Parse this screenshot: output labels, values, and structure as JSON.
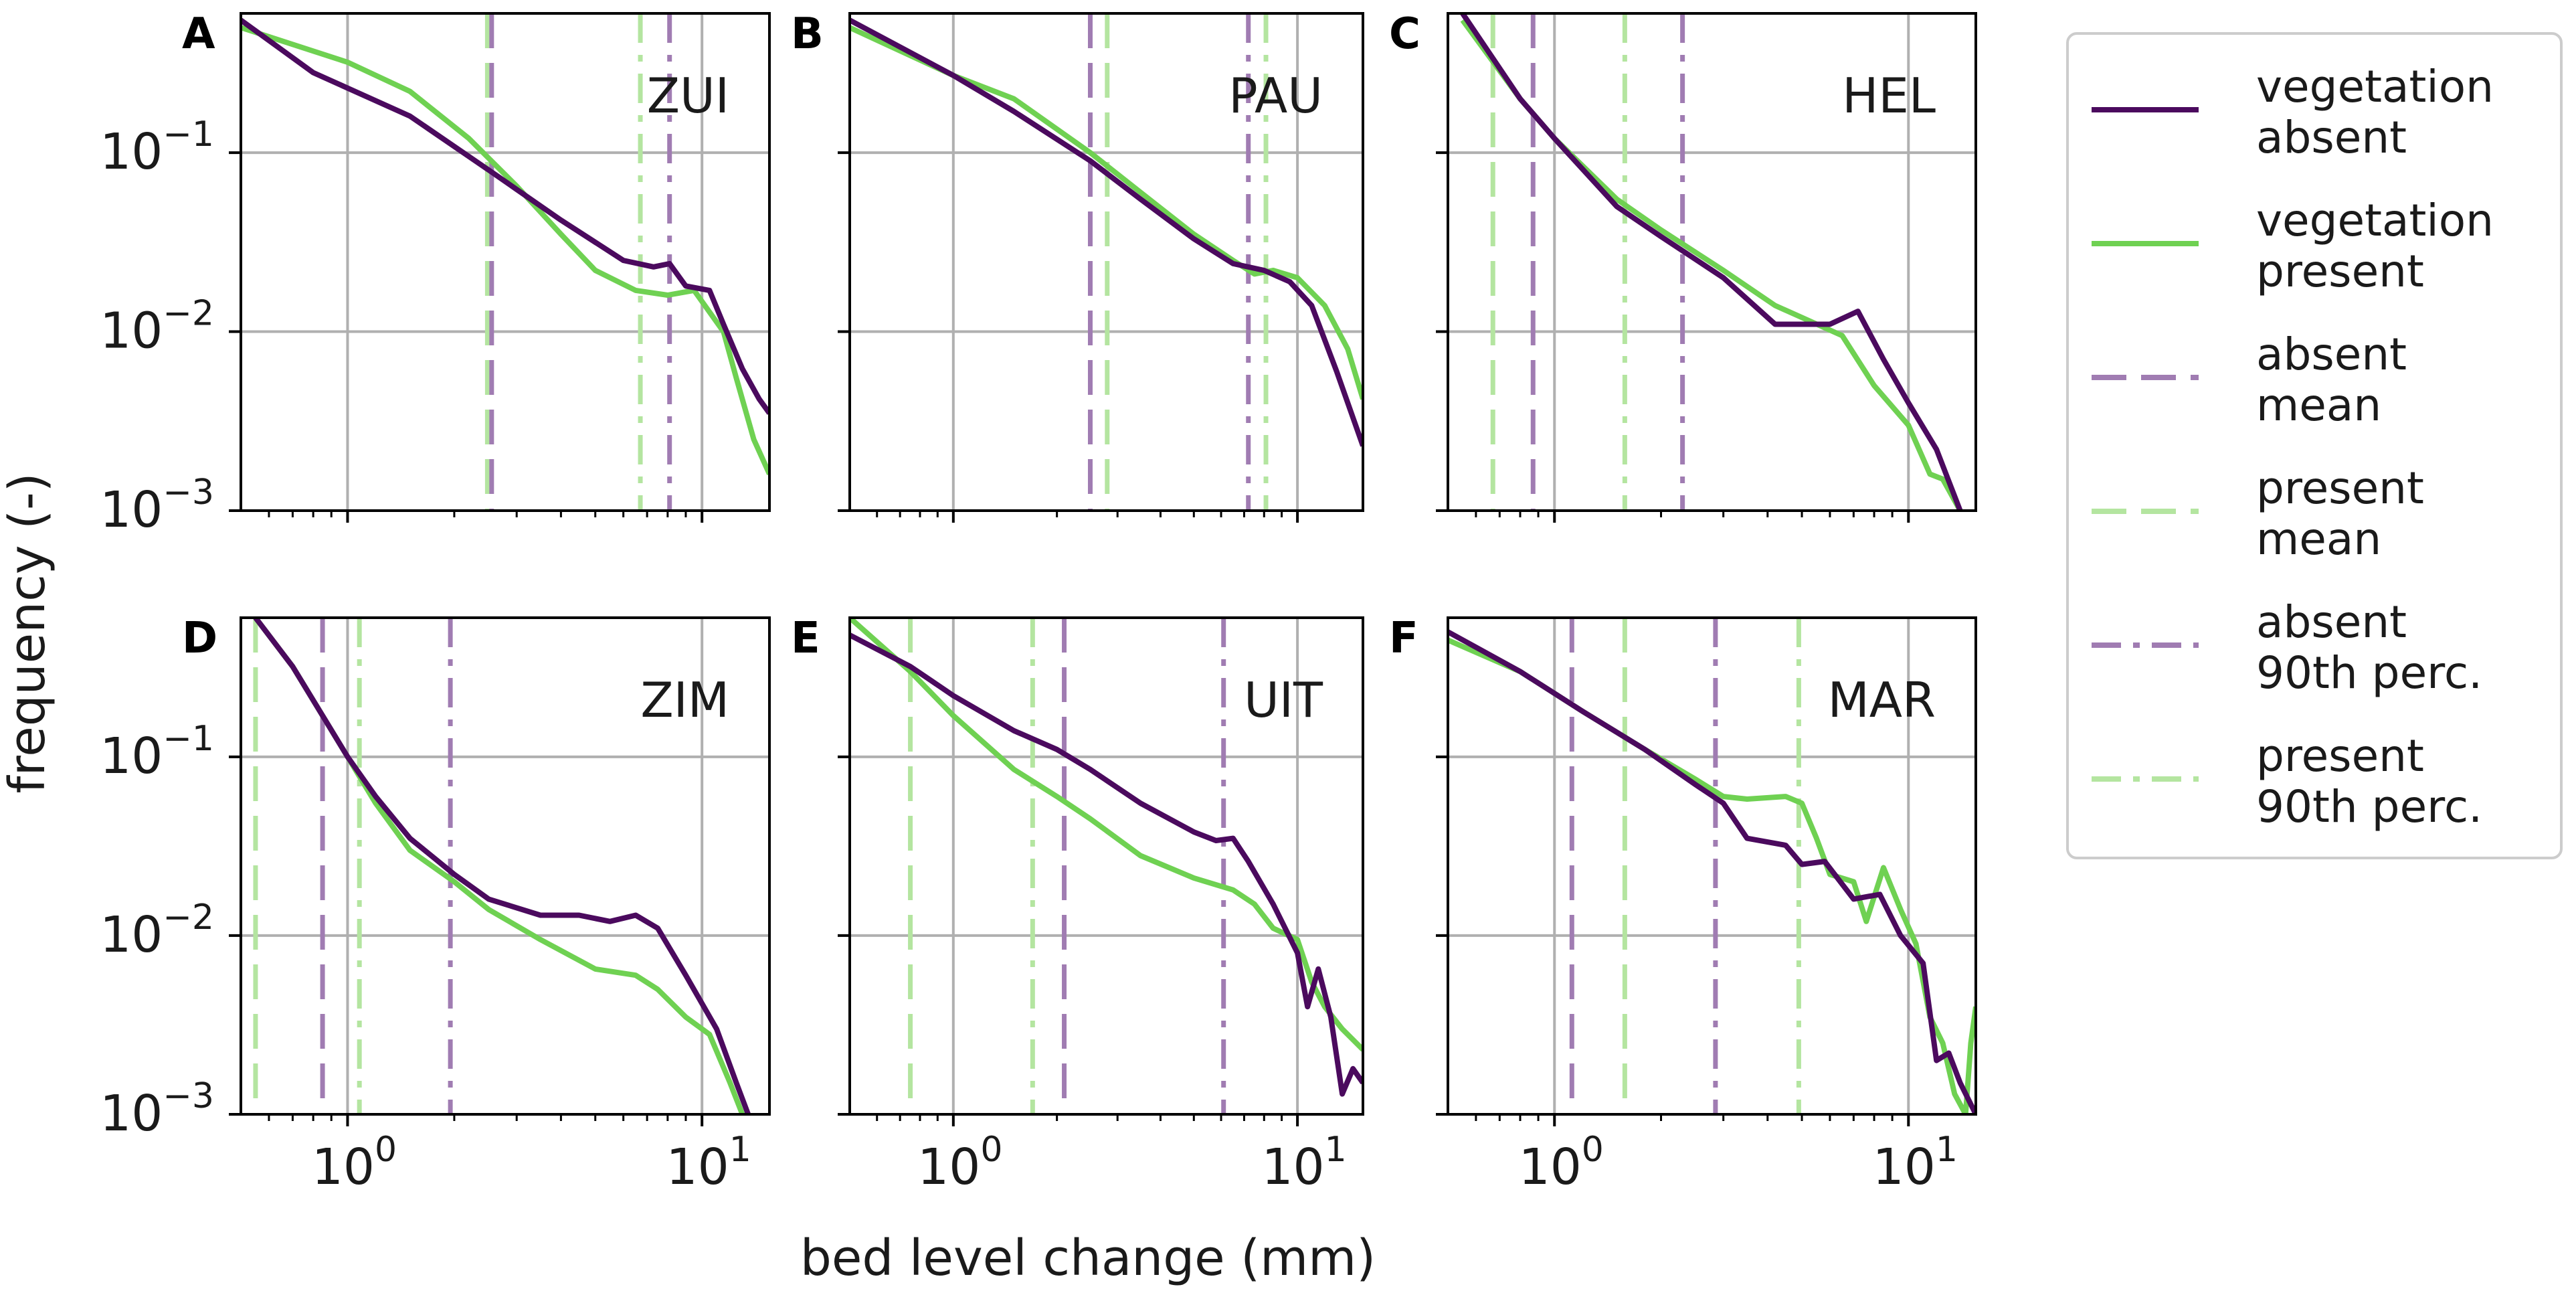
{
  "chart_data": {
    "type": "line",
    "layout": "2x3 small multiples, log-log axes",
    "xlabel": "bed level change (mm)",
    "ylabel": "frequency (-)",
    "xscale": "log",
    "yscale": "log",
    "xlim": [
      0.5,
      15.5
    ],
    "ylim": [
      0.001,
      0.6
    ],
    "xticks": [
      {
        "value": 1,
        "label": "10",
        "exp": "0"
      },
      {
        "value": 10,
        "label": "10",
        "exp": "1"
      }
    ],
    "yticks": [
      {
        "value": 0.1,
        "label": "10",
        "exp": "−1"
      },
      {
        "value": 0.01,
        "label": "10",
        "exp": "−2"
      },
      {
        "value": 0.001,
        "label": "10",
        "exp": "−3"
      }
    ],
    "colors": {
      "absent": "#4b0a5e",
      "present": "#6fd152",
      "absent_stat": "#a07cb2",
      "present_stat": "#b4e5a0",
      "grid": "#b0b0b0",
      "axis": "#000000"
    },
    "legend": [
      {
        "key": "absent_line",
        "style": "solid",
        "color": "#4b0a5e",
        "lines": [
          "vegetation",
          "absent"
        ]
      },
      {
        "key": "present_line",
        "style": "solid",
        "color": "#6fd152",
        "lines": [
          "vegetation",
          "present"
        ]
      },
      {
        "key": "absent_mean",
        "style": "dashed",
        "color": "#a07cb2",
        "lines": [
          "absent",
          "mean"
        ]
      },
      {
        "key": "present_mean",
        "style": "dashed",
        "color": "#b4e5a0",
        "lines": [
          "present",
          "mean"
        ]
      },
      {
        "key": "absent_p90",
        "style": "dashdot",
        "color": "#a07cb2",
        "lines": [
          "absent",
          "90th perc."
        ]
      },
      {
        "key": "present_p90",
        "style": "dashdot",
        "color": "#b4e5a0",
        "lines": [
          "present",
          "90th perc."
        ]
      }
    ],
    "panels": [
      {
        "letter": "A",
        "site": "ZUI",
        "absent_mean": 2.55,
        "present_mean": 2.48,
        "absent_p90": 8.1,
        "present_p90": 6.7,
        "series": [
          {
            "name": "vegetation absent",
            "x": [
              0.5,
              0.8,
              1.5,
              2.5,
              4,
              6,
              7.3,
              8.1,
              9,
              10.5,
              11.5,
              13,
              14.5,
              15.5
            ],
            "y": [
              0.55,
              0.28,
              0.16,
              0.08,
              0.042,
              0.025,
              0.023,
              0.024,
              0.018,
              0.017,
              0.011,
              0.0062,
              0.0042,
              0.0035
            ]
          },
          {
            "name": "vegetation present",
            "x": [
              0.5,
              1,
              1.5,
              2.2,
              3,
              4,
              5,
              6.5,
              8,
              9.5,
              11.5,
              12.5,
              14,
              15.5
            ],
            "y": [
              0.5,
              0.32,
              0.22,
              0.12,
              0.065,
              0.035,
              0.022,
              0.017,
              0.016,
              0.017,
              0.01,
              0.0055,
              0.0025,
              0.0016
            ]
          }
        ]
      },
      {
        "letter": "B",
        "site": "PAU",
        "absent_mean": 2.5,
        "present_mean": 2.8,
        "absent_p90": 7.2,
        "present_p90": 8.1,
        "series": [
          {
            "name": "vegetation absent",
            "x": [
              0.5,
              1,
              1.5,
              2.5,
              3.5,
              5,
              6.5,
              8,
              9.5,
              11,
              13,
              15.5
            ],
            "y": [
              0.55,
              0.27,
              0.17,
              0.09,
              0.055,
              0.033,
              0.024,
              0.022,
              0.019,
              0.014,
              0.006,
              0.0023
            ]
          },
          {
            "name": "vegetation present",
            "x": [
              0.5,
              1,
              1.5,
              2.5,
              3.5,
              5,
              6.5,
              7.5,
              8.5,
              10,
              12,
              14,
              15.5
            ],
            "y": [
              0.5,
              0.27,
              0.2,
              0.1,
              0.06,
              0.035,
              0.025,
              0.021,
              0.022,
              0.02,
              0.014,
              0.008,
              0.0042
            ]
          }
        ]
      },
      {
        "letter": "C",
        "site": "HEL",
        "absent_mean": 0.87,
        "present_mean": 0.67,
        "absent_p90": 2.3,
        "present_p90": 1.58,
        "series": [
          {
            "name": "vegetation absent",
            "x": [
              0.55,
              0.8,
              1,
              1.5,
              2,
              3,
              4.2,
              5,
              6,
              7.2,
              8.5,
              10,
              12,
              14
            ],
            "y": [
              0.6,
              0.2,
              0.12,
              0.05,
              0.034,
              0.02,
              0.011,
              0.011,
              0.011,
              0.013,
              0.007,
              0.004,
              0.0022,
              0.001
            ]
          },
          {
            "name": "vegetation present",
            "x": [
              0.55,
              0.8,
              1,
              1.5,
              2,
              3,
              4.2,
              5,
              6.5,
              8,
              10,
              11.5,
              12.5,
              14
            ],
            "y": [
              0.55,
              0.2,
              0.12,
              0.055,
              0.037,
              0.022,
              0.014,
              0.012,
              0.0095,
              0.005,
              0.003,
              0.0016,
              0.0015,
              0.001
            ]
          }
        ]
      },
      {
        "letter": "D",
        "site": "ZIM",
        "absent_mean": 0.85,
        "present_mean": 0.55,
        "absent_p90": 1.95,
        "present_p90": 1.08,
        "series": [
          {
            "name": "vegetation absent",
            "x": [
              0.55,
              0.7,
              0.85,
              1,
              1.2,
              1.5,
              2,
              2.5,
              3.5,
              4.5,
              5.5,
              6.5,
              7.5,
              9,
              11,
              12.5,
              13.5
            ],
            "y": [
              0.6,
              0.32,
              0.17,
              0.1,
              0.06,
              0.035,
              0.022,
              0.016,
              0.013,
              0.013,
              0.012,
              0.013,
              0.011,
              0.006,
              0.003,
              0.0015,
              0.001
            ]
          },
          {
            "name": "vegetation present",
            "x": [
              0.55,
              0.7,
              0.85,
              1,
              1.2,
              1.5,
              2,
              2.5,
              3.5,
              5,
              6.5,
              7.5,
              9,
              10.5,
              12,
              13
            ],
            "y": [
              0.6,
              0.32,
              0.17,
              0.1,
              0.055,
              0.03,
              0.02,
              0.014,
              0.0095,
              0.0065,
              0.006,
              0.005,
              0.0035,
              0.0028,
              0.0015,
              0.001
            ]
          }
        ]
      },
      {
        "letter": "E",
        "site": "UIT",
        "absent_mean": 2.1,
        "present_mean": 0.75,
        "absent_p90": 6.1,
        "present_p90": 1.7,
        "series": [
          {
            "name": "vegetation absent",
            "x": [
              0.5,
              0.75,
              1,
              1.5,
              2,
              2.5,
              3.5,
              5,
              5.8,
              6.5,
              7.2,
              8.5,
              10,
              10.7,
              11.5,
              12.5,
              13.5,
              14.5,
              15.5
            ],
            "y": [
              0.48,
              0.32,
              0.22,
              0.14,
              0.11,
              0.085,
              0.055,
              0.038,
              0.034,
              0.035,
              0.026,
              0.015,
              0.008,
              0.004,
              0.0065,
              0.0035,
              0.0013,
              0.0018,
              0.0015
            ]
          },
          {
            "name": "vegetation present",
            "x": [
              0.5,
              0.75,
              1,
              1.5,
              2,
              2.5,
              3.5,
              5,
              6.5,
              7.5,
              8.5,
              10,
              11,
              12,
              13.5,
              15.5
            ],
            "y": [
              0.6,
              0.3,
              0.17,
              0.085,
              0.06,
              0.045,
              0.028,
              0.021,
              0.018,
              0.015,
              0.011,
              0.0095,
              0.0055,
              0.004,
              0.003,
              0.0023
            ]
          }
        ]
      },
      {
        "letter": "F",
        "site": "MAR",
        "absent_mean": 1.12,
        "present_mean": 1.58,
        "absent_p90": 2.85,
        "present_p90": 4.9,
        "series": [
          {
            "name": "vegetation absent",
            "x": [
              0.5,
              0.8,
              1.2,
              1.8,
              2.5,
              3,
              3.5,
              4.5,
              5,
              5.8,
              7,
              8.3,
              9.5,
              11,
              12,
              13,
              14,
              15.5
            ],
            "y": [
              0.5,
              0.3,
              0.18,
              0.11,
              0.07,
              0.055,
              0.035,
              0.032,
              0.025,
              0.026,
              0.016,
              0.017,
              0.01,
              0.007,
              0.002,
              0.0022,
              0.0015,
              0.001
            ]
          },
          {
            "name": "vegetation present",
            "x": [
              0.5,
              0.8,
              1.2,
              1.8,
              2.5,
              3,
              3.5,
              4.5,
              5,
              5.5,
              6,
              7,
              7.6,
              8.5,
              9.5,
              10.5,
              11.5,
              12.5,
              13.5,
              14.5,
              15,
              15.5
            ],
            "y": [
              0.45,
              0.3,
              0.18,
              0.11,
              0.075,
              0.06,
              0.058,
              0.06,
              0.055,
              0.035,
              0.022,
              0.02,
              0.012,
              0.024,
              0.014,
              0.009,
              0.0035,
              0.0025,
              0.0013,
              0.001,
              0.0025,
              0.004
            ]
          }
        ]
      }
    ]
  }
}
